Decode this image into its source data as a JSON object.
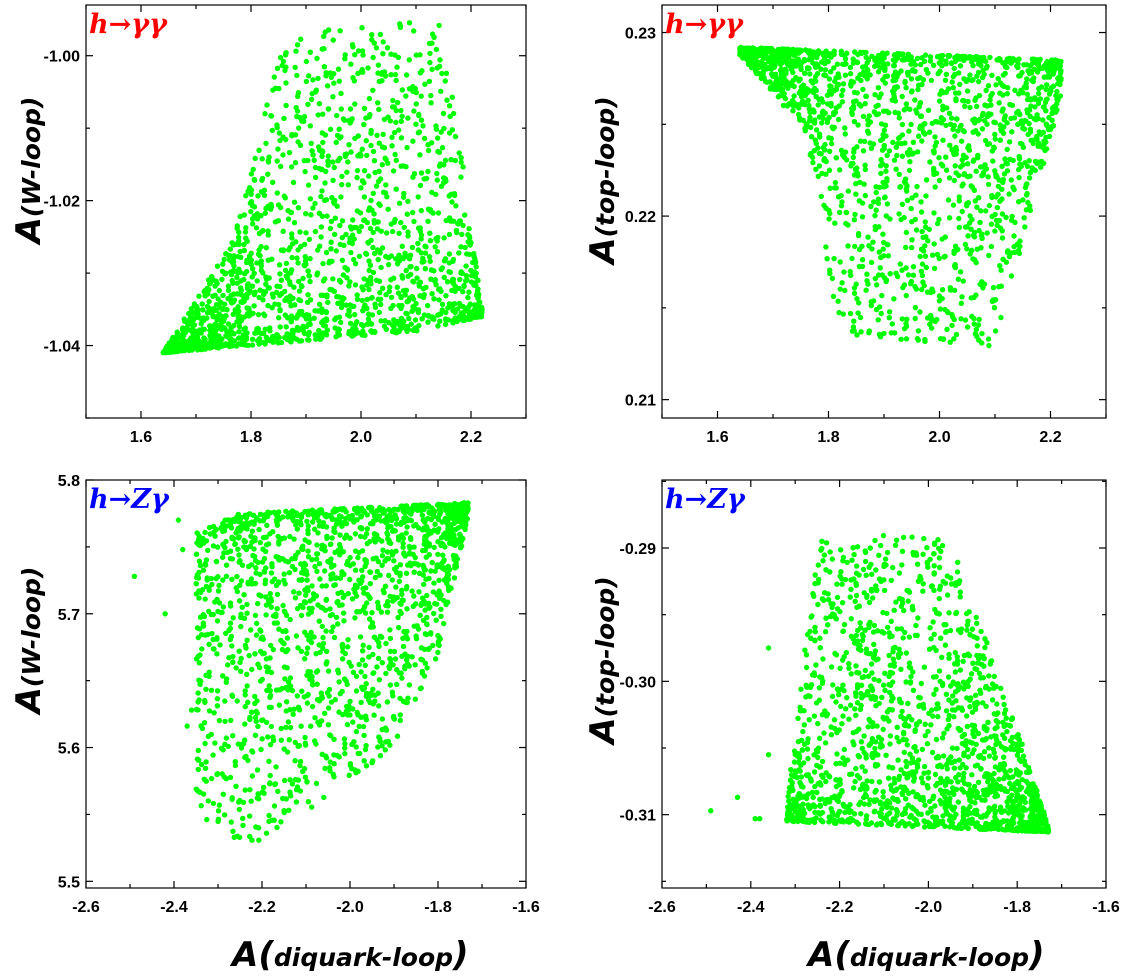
{
  "figure_xlabel": {
    "main": "A(",
    "sub": "diquark-loop",
    "close": ")"
  },
  "chart_data": [
    {
      "type": "scatter",
      "process": "h→γγ",
      "process_color": "#ff0000",
      "point_color": "#00ff00",
      "ylabel": {
        "main": "A",
        "sub": "(W-loop)"
      },
      "xlim": [
        1.5,
        2.3
      ],
      "ylim": [
        -1.05,
        -0.993
      ],
      "xticks": [
        "1.6",
        "1.8",
        "2.0",
        "2.2"
      ],
      "yticks": [
        "-1.04",
        "-1.02",
        "-1.00"
      ],
      "cloud": {
        "n": 1700,
        "x_range": [
          1.64,
          2.22
        ],
        "y_range": [
          -1.041,
          -0.995
        ],
        "lower_edge": [
          [
            1.64,
            -1.041
          ],
          [
            2.1,
            -1.038
          ],
          [
            2.22,
            -1.036
          ]
        ],
        "upper_edge": [
          [
            1.64,
            -1.041
          ],
          [
            1.77,
            -1.025
          ],
          [
            1.86,
            -0.997
          ],
          [
            2.15,
            -0.995
          ],
          [
            2.22,
            -1.035
          ]
        ],
        "density_bias": "bottom"
      }
    },
    {
      "type": "scatter",
      "process": "h→γγ",
      "process_color": "#ff0000",
      "point_color": "#00ff00",
      "ylabel": {
        "main": "A",
        "sub": "(top-loop)"
      },
      "xlim": [
        1.5,
        2.3
      ],
      "ylim": [
        0.209,
        0.2315
      ],
      "xticks": [
        "1.6",
        "1.8",
        "2.0",
        "2.2"
      ],
      "yticks": [
        "0.21",
        "0.22",
        "0.23"
      ],
      "cloud": {
        "n": 1700,
        "x_range": [
          1.64,
          2.22
        ],
        "y_range": [
          0.2129,
          0.2292
        ],
        "lower_edge": [
          [
            1.64,
            0.2288
          ],
          [
            1.76,
            0.2245
          ],
          [
            1.82,
            0.2135
          ],
          [
            2.1,
            0.2129
          ],
          [
            2.22,
            0.2265
          ]
        ],
        "upper_edge": [
          [
            1.64,
            0.2292
          ],
          [
            2.22,
            0.2285
          ]
        ],
        "density_bias": "top"
      }
    },
    {
      "type": "scatter",
      "process": "h→Zγ",
      "process_color": "#0000ff",
      "point_color": "#00ff00",
      "ylabel": {
        "main": "A",
        "sub": "(W-loop)"
      },
      "xlim": [
        -2.6,
        -1.6
      ],
      "ylim": [
        5.495,
        5.8
      ],
      "xticks": [
        "-2.6",
        "-2.4",
        "-2.2",
        "-2.0",
        "-1.8",
        "-1.6"
      ],
      "yticks": [
        "5.5",
        "5.6",
        "5.7",
        "5.8"
      ],
      "outliers": [
        [
          -2.49,
          5.728
        ],
        [
          -2.42,
          5.7
        ],
        [
          -2.36,
          5.628
        ],
        [
          -2.37,
          5.616
        ],
        [
          -2.38,
          5.748
        ],
        [
          -2.39,
          5.77
        ]
      ],
      "cloud": {
        "n": 1650,
        "x_range": [
          -2.35,
          -1.73
        ],
        "y_range": [
          5.523,
          5.783
        ],
        "lower_edge": [
          [
            -2.35,
            5.55
          ],
          [
            -2.22,
            5.523
          ],
          [
            -1.9,
            5.6
          ],
          [
            -1.8,
            5.67
          ],
          [
            -1.73,
            5.775
          ]
        ],
        "upper_edge": [
          [
            -2.35,
            5.76
          ],
          [
            -2.25,
            5.775
          ],
          [
            -1.73,
            5.783
          ]
        ],
        "density_bias": "top"
      }
    },
    {
      "type": "scatter",
      "process": "h→Zγ",
      "process_color": "#0000ff",
      "point_color": "#00ff00",
      "ylabel": {
        "main": "A",
        "sub": "(top-loop)"
      },
      "xlim": [
        -2.6,
        -1.6
      ],
      "ylim": [
        -0.3155,
        -0.2849
      ],
      "xticks": [
        "-2.6",
        "-2.4",
        "-2.2",
        "-2.0",
        "-1.8",
        "-1.6"
      ],
      "yticks": [
        "-0.31",
        "-0.30",
        "-0.29"
      ],
      "outliers": [
        [
          -2.49,
          -0.3097
        ],
        [
          -2.43,
          -0.3087
        ],
        [
          -2.39,
          -0.3103
        ],
        [
          -2.38,
          -0.3103
        ],
        [
          -2.36,
          -0.3055
        ],
        [
          -2.36,
          -0.2975
        ]
      ],
      "cloud": {
        "n": 1650,
        "x_range": [
          -2.32,
          -1.73
        ],
        "y_range": [
          -0.3113,
          -0.2888
        ],
        "lower_edge": [
          [
            -2.32,
            -0.3105
          ],
          [
            -1.73,
            -0.3113
          ]
        ],
        "upper_edge": [
          [
            -2.32,
            -0.3095
          ],
          [
            -2.25,
            -0.2895
          ],
          [
            -2.1,
            -0.2888
          ],
          [
            -1.95,
            -0.2895
          ],
          [
            -1.82,
            -0.3015
          ],
          [
            -1.73,
            -0.3108
          ]
        ],
        "density_bias": "bottom"
      }
    }
  ]
}
